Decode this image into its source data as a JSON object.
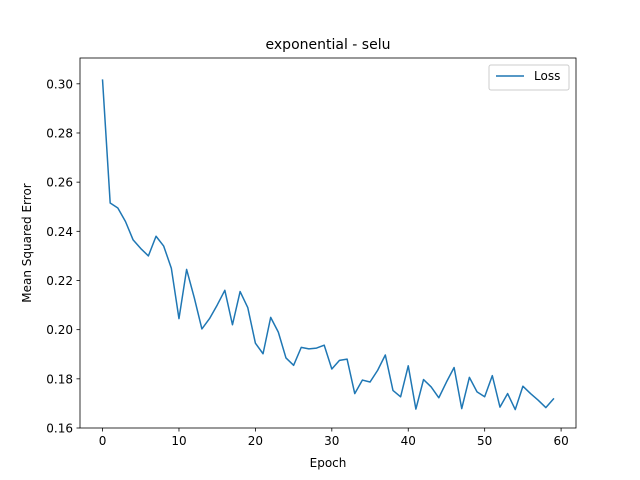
{
  "chart_data": {
    "type": "line",
    "title": "exponential - selu",
    "xlabel": "Epoch",
    "ylabel": "Mean Squared Error",
    "xlim": [
      -2.95,
      61.95
    ],
    "ylim": [
      0.16,
      0.3105
    ],
    "x_ticks": [
      0,
      10,
      20,
      30,
      40,
      50,
      60
    ],
    "y_ticks": [
      0.16,
      0.18,
      0.2,
      0.22,
      0.24,
      0.26,
      0.28,
      0.3
    ],
    "x_tick_labels": [
      "0",
      "10",
      "20",
      "30",
      "40",
      "50",
      "60"
    ],
    "y_tick_labels": [
      "0.16",
      "0.18",
      "0.20",
      "0.22",
      "0.24",
      "0.26",
      "0.28",
      "0.30"
    ],
    "grid": false,
    "legend_position": "upper right",
    "series": [
      {
        "name": "Loss",
        "color": "#1f77b4",
        "x": [
          0,
          1,
          2,
          3,
          4,
          5,
          6,
          7,
          8,
          9,
          10,
          11,
          12,
          13,
          14,
          15,
          16,
          17,
          18,
          19,
          20,
          21,
          22,
          23,
          24,
          25,
          26,
          27,
          28,
          29,
          30,
          31,
          32,
          33,
          34,
          35,
          36,
          37,
          38,
          39,
          40,
          41,
          42,
          43,
          44,
          45,
          46,
          47,
          48,
          49,
          50,
          51,
          52,
          53,
          54,
          55,
          56,
          57,
          58,
          59
        ],
        "values": [
          0.3015,
          0.2515,
          0.2495,
          0.244,
          0.2365,
          0.233,
          0.23,
          0.238,
          0.234,
          0.225,
          0.2045,
          0.2245,
          0.213,
          0.2003,
          0.2045,
          0.21,
          0.216,
          0.202,
          0.2155,
          0.209,
          0.1945,
          0.1902,
          0.205,
          0.199,
          0.1885,
          0.1855,
          0.1928,
          0.1922,
          0.1925,
          0.1937,
          0.184,
          0.1875,
          0.188,
          0.174,
          0.1795,
          0.1787,
          0.1835,
          0.1897,
          0.1753,
          0.1727,
          0.1853,
          0.1677,
          0.1797,
          0.1767,
          0.1723,
          0.1787,
          0.1846,
          0.1679,
          0.1806,
          0.1747,
          0.1727,
          0.1813,
          0.1685,
          0.174,
          0.1675,
          0.177,
          0.174,
          0.1713,
          0.1683,
          0.1718
        ]
      }
    ]
  }
}
